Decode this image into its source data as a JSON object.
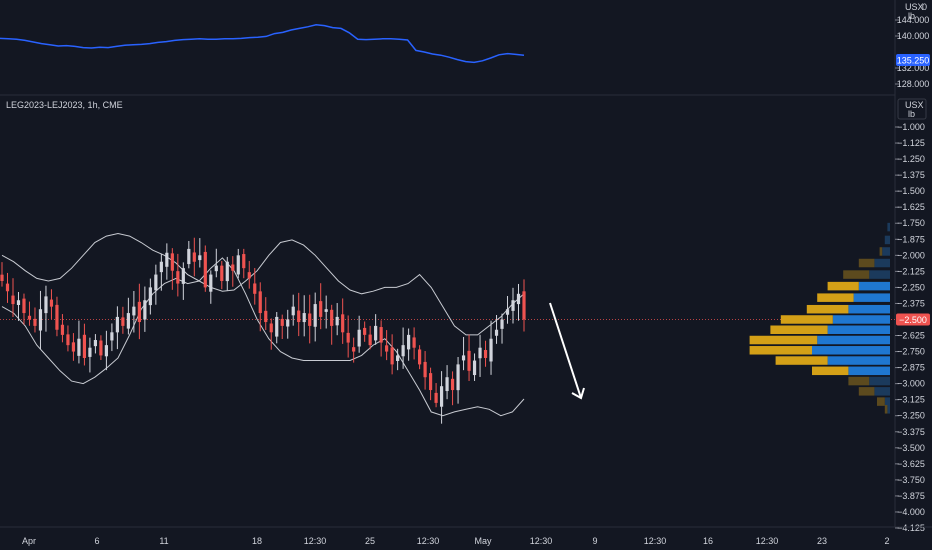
{
  "colors": {
    "background": "#131722",
    "up_candle": "#d1d4dc",
    "down_candle": "#ef5350",
    "bollinger": "#c8cbd2",
    "upper_pane_line": "#2962ff",
    "price_badge": "#ef5350",
    "upper_badge": "#2962ff",
    "vp_up_blue": "#1f77d0",
    "vp_down_gold": "#d4a017",
    "vp_dim_blue": "#1b3a5c",
    "vp_dim_gold": "#5c4a1e",
    "arrow": "#ffffff"
  },
  "upper_pane": {
    "unit_line1": "USX",
    "unit_line2": "lb",
    "extra_label": "0",
    "price_badge": "135.250",
    "tick_labels": [
      "144.000",
      "140.000",
      "132.000",
      "128.000"
    ],
    "chart_data": {
      "type": "line",
      "title": "",
      "ylim": [
        126,
        147
      ],
      "y_ticks": [
        144,
        140,
        132,
        128
      ],
      "values": [
        139.4,
        139.3,
        139.2,
        138.9,
        138.5,
        138.1,
        137.8,
        137.5,
        137.6,
        137.4,
        137.1,
        137.0,
        137.2,
        137.1,
        137.4,
        137.7,
        137.8,
        137.9,
        138.1,
        138.4,
        138.6,
        138.9,
        139.1,
        139.2,
        139.3,
        139.2,
        139.2,
        139.3,
        139.3,
        139.4,
        139.6,
        139.7,
        139.9,
        140.6,
        140.9,
        141.5,
        141.9,
        142.3,
        142.8,
        142.6,
        142.1,
        141.9,
        140.8,
        139.2,
        139.1,
        139.2,
        139.3,
        139.3,
        139.2,
        139.0,
        136.4,
        136.0,
        135.5,
        135.2,
        134.7,
        134.1,
        133.6,
        133.4,
        133.8,
        134.5,
        135.3,
        135.6,
        135.4,
        135.2
      ]
    }
  },
  "lower_pane": {
    "symbol": "LEG2023-LEJ2023, 1h, CME",
    "unit_line1": "USX",
    "unit_line2": "lb",
    "price_badge": "−2.500",
    "tick_labels": [
      "−1.000",
      "−1.125",
      "−1.250",
      "−1.375",
      "−1.500",
      "−1.625",
      "−1.750",
      "−1.875",
      "−2.000",
      "−2.125",
      "−2.250",
      "−2.375",
      "−2.625",
      "−2.750",
      "−2.875",
      "−3.000",
      "−3.125",
      "−3.250",
      "−3.375",
      "−3.500",
      "−3.625",
      "−3.750",
      "−3.875",
      "−4.000",
      "−4.125"
    ],
    "chart_data": {
      "type": "candlestick",
      "title": "",
      "ylim": [
        -4.15,
        -0.95
      ],
      "y_ticks": [
        -1.0,
        -1.125,
        -1.25,
        -1.375,
        -1.5,
        -1.625,
        -1.75,
        -1.875,
        -2.0,
        -2.125,
        -2.25,
        -2.375,
        -2.625,
        -2.75,
        -2.875,
        -3.0,
        -3.125,
        -3.25,
        -3.375,
        -3.5,
        -3.625,
        -3.75,
        -3.875,
        -4.0,
        -4.125
      ],
      "last_price": -2.5,
      "close_series": [
        -2.2,
        -2.28,
        -2.38,
        -2.35,
        -2.45,
        -2.5,
        -2.55,
        -2.42,
        -2.32,
        -2.4,
        -2.58,
        -2.62,
        -2.7,
        -2.75,
        -2.65,
        -2.8,
        -2.72,
        -2.66,
        -2.78,
        -2.7,
        -2.6,
        -2.48,
        -2.55,
        -2.45,
        -2.4,
        -2.52,
        -2.35,
        -2.25,
        -2.15,
        -2.05,
        -1.98,
        -2.12,
        -2.22,
        -2.1,
        -1.95,
        -2.05,
        -2.0,
        -2.25,
        -2.15,
        -2.08,
        -2.2,
        -2.05,
        -2.12,
        -2.0,
        -2.1,
        -2.18,
        -2.3,
        -2.45,
        -2.52,
        -2.6,
        -2.48,
        -2.55,
        -2.5,
        -2.4,
        -2.52,
        -2.45,
        -2.55,
        -2.38,
        -2.48,
        -2.42,
        -2.55,
        -2.48,
        -2.6,
        -2.68,
        -2.75,
        -2.58,
        -2.62,
        -2.7,
        -2.55,
        -2.68,
        -2.75,
        -2.85,
        -2.78,
        -2.7,
        -2.62,
        -2.72,
        -2.85,
        -2.95,
        -3.05,
        -3.15,
        -3.02,
        -2.95,
        -3.05,
        -2.85,
        -2.78,
        -2.9,
        -2.82,
        -2.72,
        -2.8,
        -2.65,
        -2.58,
        -2.5,
        -2.42,
        -2.35,
        -2.3,
        -2.5
      ],
      "bollinger_upper": [
        -2.0,
        -2.05,
        -2.12,
        -2.18,
        -2.2,
        -2.18,
        -2.1,
        -2.0,
        -1.9,
        -1.85,
        -1.83,
        -1.85,
        -1.9,
        -1.96,
        -2.0,
        -2.06,
        -2.15,
        -2.2,
        -2.25,
        -2.28,
        -2.27,
        -2.2,
        -2.12,
        -2.0,
        -1.9,
        -1.88,
        -1.92,
        -2.0,
        -2.1,
        -2.2,
        -2.27,
        -2.3,
        -2.28,
        -2.25,
        -2.25,
        -2.22,
        -2.15,
        -2.25,
        -2.4,
        -2.55,
        -2.62,
        -2.62,
        -2.55,
        -2.48,
        -2.38,
        -2.3
      ],
      "bollinger_lower": [
        -2.4,
        -2.45,
        -2.55,
        -2.7,
        -2.8,
        -2.9,
        -2.98,
        -3.0,
        -2.95,
        -2.88,
        -2.8,
        -2.62,
        -2.42,
        -2.3,
        -2.22,
        -2.18,
        -2.22,
        -2.2,
        -2.1,
        -2.02,
        -2.12,
        -2.3,
        -2.5,
        -2.65,
        -2.75,
        -2.8,
        -2.82,
        -2.82,
        -2.82,
        -2.82,
        -2.82,
        -2.78,
        -2.7,
        -2.65,
        -2.75,
        -2.9,
        -3.05,
        -3.22,
        -3.25,
        -3.22,
        -3.2,
        -3.18,
        -3.2,
        -3.25,
        -3.22,
        -3.12
      ]
    },
    "volume_profile": {
      "bins": [
        {
          "price": -1.78,
          "up": 1,
          "down": 0
        },
        {
          "price": -1.88,
          "up": 2,
          "down": 0
        },
        {
          "price": -1.97,
          "up": 3,
          "down": 1
        },
        {
          "price": -2.06,
          "up": 6,
          "down": 6
        },
        {
          "price": -2.15,
          "up": 8,
          "down": 10
        },
        {
          "price": -2.24,
          "up": 12,
          "down": 12
        },
        {
          "price": -2.33,
          "up": 14,
          "down": 14
        },
        {
          "price": -2.42,
          "up": 16,
          "down": 16
        },
        {
          "price": -2.5,
          "up": 22,
          "down": 20
        },
        {
          "price": -2.58,
          "up": 24,
          "down": 22
        },
        {
          "price": -2.66,
          "up": 28,
          "down": 26
        },
        {
          "price": -2.74,
          "up": 30,
          "down": 24
        },
        {
          "price": -2.82,
          "up": 24,
          "down": 20
        },
        {
          "price": -2.9,
          "up": 16,
          "down": 14
        },
        {
          "price": -2.98,
          "up": 8,
          "down": 8
        },
        {
          "price": -3.06,
          "up": 6,
          "down": 6
        },
        {
          "price": -3.14,
          "up": 2,
          "down": 3
        },
        {
          "price": -3.2,
          "up": 1,
          "down": 1
        }
      ]
    },
    "arrow_direction": "down"
  },
  "time_axis": {
    "labels": [
      "Apr",
      "6",
      "11",
      "18",
      "12:30",
      "25",
      "12:30",
      "May",
      "12:30",
      "9",
      "12:30",
      "16",
      "12:30",
      "23",
      "2"
    ]
  }
}
